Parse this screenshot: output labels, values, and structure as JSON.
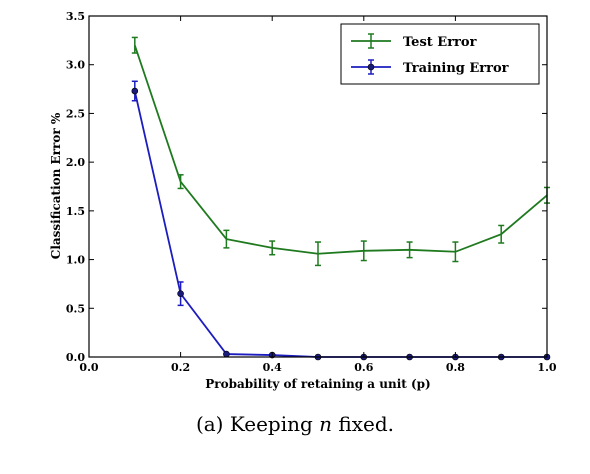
{
  "chart_data": {
    "type": "line",
    "xlabel": "Probability of retaining a unit (p)",
    "ylabel": "Classification Error %",
    "xlim": [
      0.0,
      1.0
    ],
    "ylim": [
      0.0,
      3.5
    ],
    "xticks": [
      "0.0",
      "0.2",
      "0.4",
      "0.6",
      "0.8",
      "1.0"
    ],
    "yticks": [
      "0.0",
      "0.5",
      "1.0",
      "1.5",
      "2.0",
      "2.5",
      "3.0",
      "3.5"
    ],
    "legend_position": "top-right",
    "grid": false,
    "series": [
      {
        "name": "Test Error",
        "color": "#1f7a1f",
        "marker": "none",
        "x": [
          0.1,
          0.2,
          0.3,
          0.4,
          0.5,
          0.6,
          0.7,
          0.8,
          0.9,
          1.0
        ],
        "y": [
          3.2,
          1.8,
          1.21,
          1.12,
          1.06,
          1.09,
          1.1,
          1.08,
          1.26,
          1.66
        ],
        "err": [
          0.08,
          0.07,
          0.09,
          0.07,
          0.12,
          0.1,
          0.08,
          0.1,
          0.09,
          0.08
        ]
      },
      {
        "name": "Training Error",
        "color": "#1d1dbf",
        "marker": "circle",
        "x": [
          0.1,
          0.2,
          0.3,
          0.4,
          0.5,
          0.6,
          0.7,
          0.8,
          0.9,
          1.0
        ],
        "y": [
          2.73,
          0.65,
          0.03,
          0.02,
          0.0,
          0.0,
          0.0,
          0.0,
          0.0,
          0.0
        ],
        "err": [
          0.1,
          0.12,
          0.0,
          0.0,
          0.0,
          0.0,
          0.0,
          0.0,
          0.0,
          0.0
        ]
      }
    ]
  },
  "caption": {
    "prefix": "(a) Keeping ",
    "symbol": "n",
    "suffix": " fixed."
  }
}
